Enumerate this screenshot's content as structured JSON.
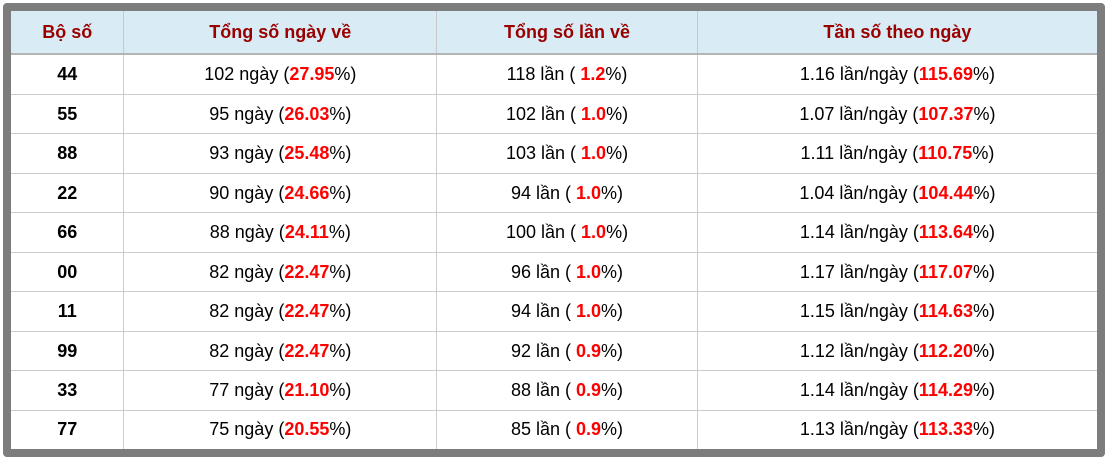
{
  "colors": {
    "frame_gray": "#7d7d7d",
    "header_bg": "#d9ecf5",
    "header_text": "#990000",
    "percent_red": "#ff0000",
    "divider": "#cccccc"
  },
  "table": {
    "headers": {
      "pair": "Bộ số",
      "days": "Tổng số ngày về",
      "times": "Tổng số lần về",
      "freq": "Tần số theo ngày"
    },
    "rows": [
      {
        "pair": "44",
        "days_pre": "102 ngày (",
        "days_pct": "27.95",
        "days_post": "%)",
        "times_pre": "118 lần ( ",
        "times_pct": "1.2",
        "times_post": "%)",
        "freq_pre": "1.16 lần/ngày (",
        "freq_pct": "115.69",
        "freq_post": "%)"
      },
      {
        "pair": "55",
        "days_pre": "95 ngày (",
        "days_pct": "26.03",
        "days_post": "%)",
        "times_pre": "102 lần ( ",
        "times_pct": "1.0",
        "times_post": "%)",
        "freq_pre": "1.07 lần/ngày (",
        "freq_pct": "107.37",
        "freq_post": "%)"
      },
      {
        "pair": "88",
        "days_pre": "93 ngày (",
        "days_pct": "25.48",
        "days_post": "%)",
        "times_pre": "103 lần ( ",
        "times_pct": "1.0",
        "times_post": "%)",
        "freq_pre": "1.11 lần/ngày (",
        "freq_pct": "110.75",
        "freq_post": "%)"
      },
      {
        "pair": "22",
        "days_pre": "90 ngày (",
        "days_pct": "24.66",
        "days_post": "%)",
        "times_pre": "94 lần ( ",
        "times_pct": "1.0",
        "times_post": "%)",
        "freq_pre": "1.04 lần/ngày (",
        "freq_pct": "104.44",
        "freq_post": "%)"
      },
      {
        "pair": "66",
        "days_pre": "88 ngày (",
        "days_pct": "24.11",
        "days_post": "%)",
        "times_pre": "100 lần ( ",
        "times_pct": "1.0",
        "times_post": "%)",
        "freq_pre": "1.14 lần/ngày (",
        "freq_pct": "113.64",
        "freq_post": "%)"
      },
      {
        "pair": "00",
        "days_pre": "82 ngày (",
        "days_pct": "22.47",
        "days_post": "%)",
        "times_pre": "96 lần ( ",
        "times_pct": "1.0",
        "times_post": "%)",
        "freq_pre": "1.17 lần/ngày (",
        "freq_pct": "117.07",
        "freq_post": "%)"
      },
      {
        "pair": "11",
        "days_pre": "82 ngày (",
        "days_pct": "22.47",
        "days_post": "%)",
        "times_pre": "94 lần ( ",
        "times_pct": "1.0",
        "times_post": "%)",
        "freq_pre": "1.15 lần/ngày (",
        "freq_pct": "114.63",
        "freq_post": "%)"
      },
      {
        "pair": "99",
        "days_pre": "82 ngày (",
        "days_pct": "22.47",
        "days_post": "%)",
        "times_pre": "92 lần ( ",
        "times_pct": "0.9",
        "times_post": "%)",
        "freq_pre": "1.12 lần/ngày (",
        "freq_pct": "112.20",
        "freq_post": "%)"
      },
      {
        "pair": "33",
        "days_pre": "77 ngày (",
        "days_pct": "21.10",
        "days_post": "%)",
        "times_pre": "88 lần ( ",
        "times_pct": "0.9",
        "times_post": "%)",
        "freq_pre": "1.14 lần/ngày (",
        "freq_pct": "114.29",
        "freq_post": "%)"
      },
      {
        "pair": "77",
        "days_pre": "75 ngày (",
        "days_pct": "20.55",
        "days_post": "%)",
        "times_pre": "85 lần ( ",
        "times_pct": "0.9",
        "times_post": "%)",
        "freq_pre": "1.13 lần/ngày (",
        "freq_post": "%)",
        "freq_pct": "113.33"
      }
    ]
  }
}
